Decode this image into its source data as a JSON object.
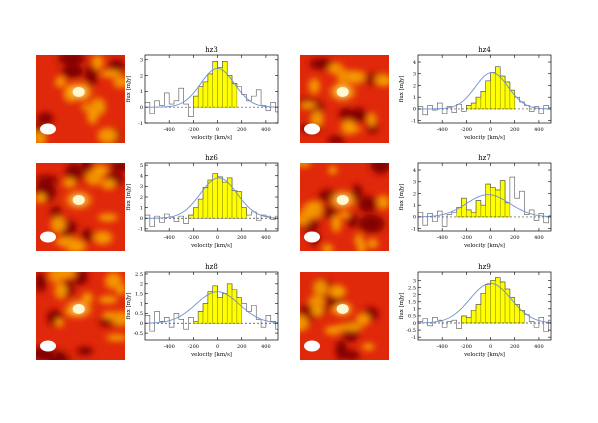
{
  "figure": {
    "colors": {
      "histogram_line": "#555555",
      "fill": "#ffff00",
      "fill_edge": "#8a8a00",
      "gaussian": "#6f8fd6",
      "zero_line": "#444444",
      "map_dark": "#7a0000",
      "map_mid": "#e0280a",
      "map_light": "#f6a000",
      "map_hot": "#fff8d0",
      "beam": "#ffffff"
    }
  },
  "chart_data": [
    {
      "type": "bar",
      "title": "hz3",
      "xlabel": "velocity [km/s]",
      "ylabel": "flux [mJy]",
      "xlim": [
        -600,
        500
      ],
      "ylim": [
        -1,
        3.3
      ],
      "xticks": [
        -400,
        -200,
        0,
        200,
        400
      ],
      "yticks": [
        -1,
        0,
        1,
        2,
        3
      ],
      "ytick_labels": [
        "-1",
        "0",
        "1",
        "2",
        "3"
      ],
      "bin_width": 40,
      "bin_start": -600,
      "values": [
        0.3,
        -0.4,
        0.4,
        0.1,
        0.9,
        0.2,
        0.4,
        1.2,
        0.2,
        -0.6,
        0.7,
        1.3,
        1.6,
        2.1,
        2.9,
        2.5,
        2.9,
        2.0,
        1.5,
        1.3,
        0.8,
        0.4,
        0.7,
        1.1,
        0.1,
        -0.2,
        0.3,
        -0.3
      ],
      "fill_range": [
        -200,
        160
      ],
      "gaussian": {
        "amplitude": 2.45,
        "center": 0,
        "fwhm": 330
      },
      "has_map": true,
      "map_style": "hz3"
    },
    {
      "type": "bar",
      "title": "hz4",
      "xlabel": "velocity [km/s]",
      "ylabel": "flux [mJy]",
      "xlim": [
        -600,
        500
      ],
      "ylim": [
        -1.2,
        4.6
      ],
      "xticks": [
        -400,
        -200,
        0,
        200,
        400
      ],
      "yticks": [
        -1,
        0,
        1,
        2,
        3,
        4
      ],
      "ytick_labels": [
        "-1",
        "0",
        "1",
        "2",
        "3",
        "4"
      ],
      "bin_width": 40,
      "bin_start": -600,
      "values": [
        0.2,
        -0.5,
        0.3,
        -0.1,
        0.5,
        -0.4,
        0.2,
        -0.3,
        0.4,
        -0.2,
        0.3,
        0.5,
        1.0,
        1.5,
        2.4,
        3.1,
        3.6,
        2.8,
        2.3,
        1.6,
        1.0,
        0.6,
        0.3,
        -0.2,
        0.2,
        -0.4,
        0.3,
        0.1
      ],
      "fill_range": [
        -240,
        200
      ],
      "gaussian": {
        "amplitude": 3.1,
        "center": 10,
        "fwhm": 320
      },
      "has_map": true,
      "map_style": "hz4"
    },
    {
      "type": "bar",
      "title": "hz6",
      "xlabel": "velocity [km/s]",
      "ylabel": "flux [mJy]",
      "xlim": [
        -600,
        500
      ],
      "ylim": [
        -1.2,
        5.2
      ],
      "xticks": [
        -400,
        -200,
        0,
        200,
        400
      ],
      "yticks": [
        -1,
        0,
        1,
        2,
        3,
        4,
        5
      ],
      "ytick_labels": [
        "-1",
        "0",
        "1",
        "2",
        "3",
        "4",
        "5"
      ],
      "bin_width": 40,
      "bin_start": -600,
      "values": [
        0.3,
        -0.8,
        0.2,
        -0.4,
        0.4,
        0.1,
        -0.3,
        0.2,
        -0.5,
        0.3,
        1.0,
        1.8,
        2.9,
        3.6,
        4.2,
        3.9,
        3.4,
        3.8,
        2.6,
        2.5,
        1.0,
        0.3,
        0.6,
        -0.2,
        0.3,
        0.2,
        -0.1,
        0.2
      ],
      "fill_range": [
        -240,
        240
      ],
      "gaussian": {
        "amplitude": 3.8,
        "center": 10,
        "fwhm": 360
      },
      "has_map": true,
      "map_style": "hz6"
    },
    {
      "type": "bar",
      "title": "hz7",
      "xlabel": "velocity [km/s]",
      "ylabel": "flux [mJy]",
      "xlim": [
        -600,
        500
      ],
      "ylim": [
        -1.2,
        4.6
      ],
      "xticks": [
        -400,
        -200,
        0,
        200,
        400
      ],
      "yticks": [
        -1,
        0,
        1,
        2,
        3,
        4
      ],
      "ytick_labels": [
        "-1",
        "0",
        "1",
        "2",
        "3",
        "4"
      ],
      "bin_width": 40,
      "bin_start": -600,
      "values": [
        0.4,
        -0.7,
        0.3,
        -0.4,
        0.5,
        -0.8,
        0.2,
        0.4,
        0.8,
        1.6,
        0.6,
        0.4,
        1.4,
        1.0,
        2.8,
        2.5,
        2.3,
        3.1,
        1.2,
        3.4,
        1.6,
        2.2,
        0.2,
        0.6,
        -0.3,
        0.3,
        -0.5,
        0.1
      ],
      "fill_range": [
        -280,
        160
      ],
      "gaussian": {
        "amplitude": 1.9,
        "center": -20,
        "fwhm": 420
      },
      "has_map": true,
      "map_style": "hz7"
    },
    {
      "type": "bar",
      "title": "hz8",
      "xlabel": "velocity [km/s]",
      "ylabel": "flux [mJy]",
      "xlim": [
        -600,
        500
      ],
      "ylim": [
        -0.85,
        2.6
      ],
      "xticks": [
        -400,
        -200,
        0,
        200,
        400
      ],
      "yticks": [
        -0.5,
        0,
        0.5,
        1,
        1.5,
        2,
        2.5
      ],
      "ytick_labels": [
        "-0.5",
        "0",
        "0.5",
        "1",
        "1.5",
        "2",
        "2.5"
      ],
      "bin_width": 40,
      "bin_start": -600,
      "values": [
        0.4,
        -0.4,
        0.6,
        0.1,
        0.3,
        -0.2,
        0.5,
        0.2,
        -0.3,
        0.3,
        0.1,
        0.6,
        1.0,
        1.6,
        1.9,
        1.3,
        1.5,
        2.0,
        1.7,
        1.3,
        1.0,
        0.6,
        0.9,
        0.2,
        -0.2,
        0.4,
        0.1,
        -0.3
      ],
      "fill_range": [
        -200,
        200
      ],
      "gaussian": {
        "amplitude": 1.6,
        "center": 0,
        "fwhm": 420
      },
      "has_map": true,
      "map_style": "hz8"
    },
    {
      "type": "bar",
      "title": "hz9",
      "xlabel": "velocity [km/s]",
      "ylabel": "flux [mJy]",
      "xlim": [
        -600,
        500
      ],
      "ylim": [
        -1.2,
        3.6
      ],
      "xticks": [
        -400,
        -200,
        0,
        200,
        400
      ],
      "yticks": [
        -1,
        -0.5,
        0,
        0.5,
        1,
        1.5,
        2,
        2.5,
        3
      ],
      "ytick_labels": [
        "-1",
        "-0.5",
        "0",
        "0.5",
        "1",
        "1.5",
        "2",
        "2.5",
        "3"
      ],
      "bin_width": 40,
      "bin_start": -600,
      "values": [
        0.1,
        0.3,
        -0.2,
        0.4,
        0.2,
        -0.3,
        0.1,
        0.2,
        -0.4,
        0.5,
        0.4,
        0.9,
        1.3,
        2.1,
        2.7,
        3.0,
        3.2,
        2.9,
        2.4,
        1.8,
        1.3,
        0.9,
        0.6,
        0.1,
        -0.3,
        0.4,
        -0.6,
        0.2
      ],
      "fill_range": [
        -240,
        280
      ],
      "gaussian": {
        "amplitude": 2.8,
        "center": 0,
        "fwhm": 400
      },
      "has_map": true,
      "map_style": "hz9"
    }
  ]
}
